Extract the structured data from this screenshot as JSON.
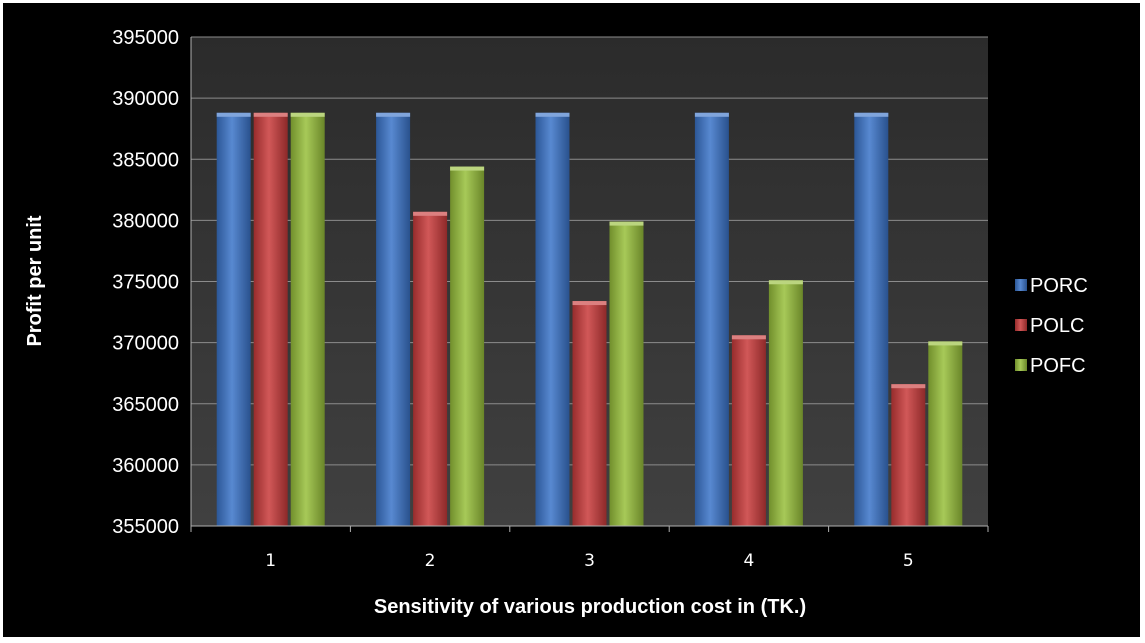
{
  "chart_data": {
    "type": "bar",
    "title": "",
    "xlabel": "Sensitivity of various production cost in (TK.)",
    "ylabel": "Profit per unit",
    "categories": [
      "1",
      "2",
      "3",
      "4",
      "5"
    ],
    "ylim": [
      355000,
      395000
    ],
    "yticks": [
      355000,
      360000,
      365000,
      370000,
      375000,
      380000,
      385000,
      390000,
      395000
    ],
    "grid": true,
    "legend_position": "right",
    "series": [
      {
        "name": "PORC",
        "color": "#3b74c9",
        "values": [
          388800,
          388800,
          388800,
          388800,
          388800
        ]
      },
      {
        "name": "POLC",
        "color": "#c93b3b",
        "values": [
          388800,
          380700,
          373400,
          370600,
          366600
        ]
      },
      {
        "name": "POFC",
        "color": "#97bf3a",
        "values": [
          388800,
          384400,
          379900,
          375100,
          370100
        ]
      }
    ]
  }
}
